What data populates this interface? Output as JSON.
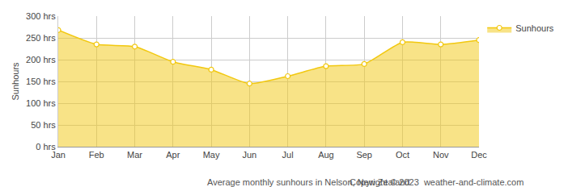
{
  "chart_data": {
    "type": "area",
    "categories": [
      "Jan",
      "Feb",
      "Mar",
      "Apr",
      "May",
      "Jun",
      "Jul",
      "Aug",
      "Sep",
      "Oct",
      "Nov",
      "Dec"
    ],
    "series": [
      {
        "name": "Sunhours",
        "color": "#f2c80f",
        "marker": "circle",
        "values": [
          268,
          235,
          230,
          195,
          177,
          145,
          162,
          185,
          190,
          240,
          235,
          245
        ]
      }
    ],
    "y_label": "Sunhours",
    "ylim": [
      0,
      300
    ],
    "yticks": [
      {
        "value": 0,
        "label": "0 hrs"
      },
      {
        "value": 50,
        "label": "50 hrs"
      },
      {
        "value": 100,
        "label": "100 hrs"
      },
      {
        "value": 150,
        "label": "150 hrs"
      },
      {
        "value": 200,
        "label": "200 hrs"
      },
      {
        "value": 250,
        "label": "250 hrs"
      },
      {
        "value": 300,
        "label": "300 hrs"
      }
    ],
    "grid": true,
    "legend": "top-right",
    "annotations": [
      "Average monthly sunhours in Nelson, New Zealand",
      "Copyright © 2023  weather-and-climate.com"
    ]
  }
}
